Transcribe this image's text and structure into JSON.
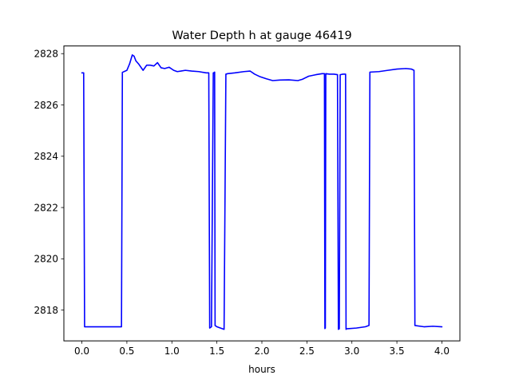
{
  "chart_data": {
    "type": "line",
    "title": "Water Depth h at gauge 46419",
    "xlabel": "hours",
    "ylabel": "",
    "xlim": [
      -0.2,
      4.2
    ],
    "ylim": [
      2816.8,
      2828.3
    ],
    "xticks": [
      0.0,
      0.5,
      1.0,
      1.5,
      2.0,
      2.5,
      3.0,
      3.5,
      4.0
    ],
    "xtick_labels": [
      "0.0",
      "0.5",
      "1.0",
      "1.5",
      "2.0",
      "2.5",
      "3.0",
      "3.5",
      "4.0"
    ],
    "yticks": [
      2818,
      2820,
      2822,
      2824,
      2826,
      2828
    ],
    "ytick_labels": [
      "2818",
      "2820",
      "2822",
      "2824",
      "2826",
      "2828"
    ],
    "grid": false,
    "legend": "none",
    "series": [
      {
        "name": "",
        "color": "#0000ff",
        "x": [
          0.0,
          0.02,
          0.03,
          0.44,
          0.45,
          0.5,
          0.53,
          0.56,
          0.58,
          0.6,
          0.63,
          0.68,
          0.72,
          0.76,
          0.8,
          0.84,
          0.88,
          0.92,
          0.97,
          1.02,
          1.06,
          1.1,
          1.15,
          1.22,
          1.3,
          1.38,
          1.41,
          1.42,
          1.44,
          1.46,
          1.465,
          1.475,
          1.48,
          1.5,
          1.58,
          1.6,
          1.62,
          1.7,
          1.8,
          1.87,
          1.92,
          1.98,
          2.05,
          2.12,
          2.2,
          2.3,
          2.4,
          2.45,
          2.52,
          2.6,
          2.67,
          2.695,
          2.7,
          2.705,
          2.71,
          2.75,
          2.8,
          2.84,
          2.85,
          2.86,
          2.87,
          2.9,
          2.93,
          2.935,
          2.94,
          3.05,
          3.15,
          3.19,
          3.2,
          3.3,
          3.4,
          3.5,
          3.6,
          3.66,
          3.69,
          3.7,
          3.8,
          3.9,
          4.0
        ],
        "values": [
          2827.25,
          2827.25,
          2817.35,
          2817.35,
          2827.27,
          2827.35,
          2827.6,
          2827.95,
          2827.9,
          2827.72,
          2827.6,
          2827.35,
          2827.55,
          2827.55,
          2827.52,
          2827.65,
          2827.45,
          2827.42,
          2827.47,
          2827.35,
          2827.3,
          2827.32,
          2827.35,
          2827.32,
          2827.3,
          2827.25,
          2827.25,
          2817.3,
          2817.35,
          2827.25,
          2827.25,
          2827.28,
          2817.4,
          2817.35,
          2817.25,
          2827.2,
          2827.22,
          2827.25,
          2827.3,
          2827.32,
          2827.2,
          2827.1,
          2827.02,
          2826.95,
          2826.97,
          2826.98,
          2826.95,
          2827.0,
          2827.12,
          2827.18,
          2827.22,
          2827.22,
          2817.28,
          2817.3,
          2827.22,
          2827.2,
          2827.2,
          2827.18,
          2817.25,
          2817.27,
          2827.18,
          2827.2,
          2827.2,
          2817.25,
          2817.27,
          2817.3,
          2817.35,
          2817.4,
          2827.28,
          2827.3,
          2827.35,
          2827.4,
          2827.42,
          2827.4,
          2827.35,
          2817.4,
          2817.35,
          2817.37,
          2817.35
        ]
      }
    ]
  }
}
